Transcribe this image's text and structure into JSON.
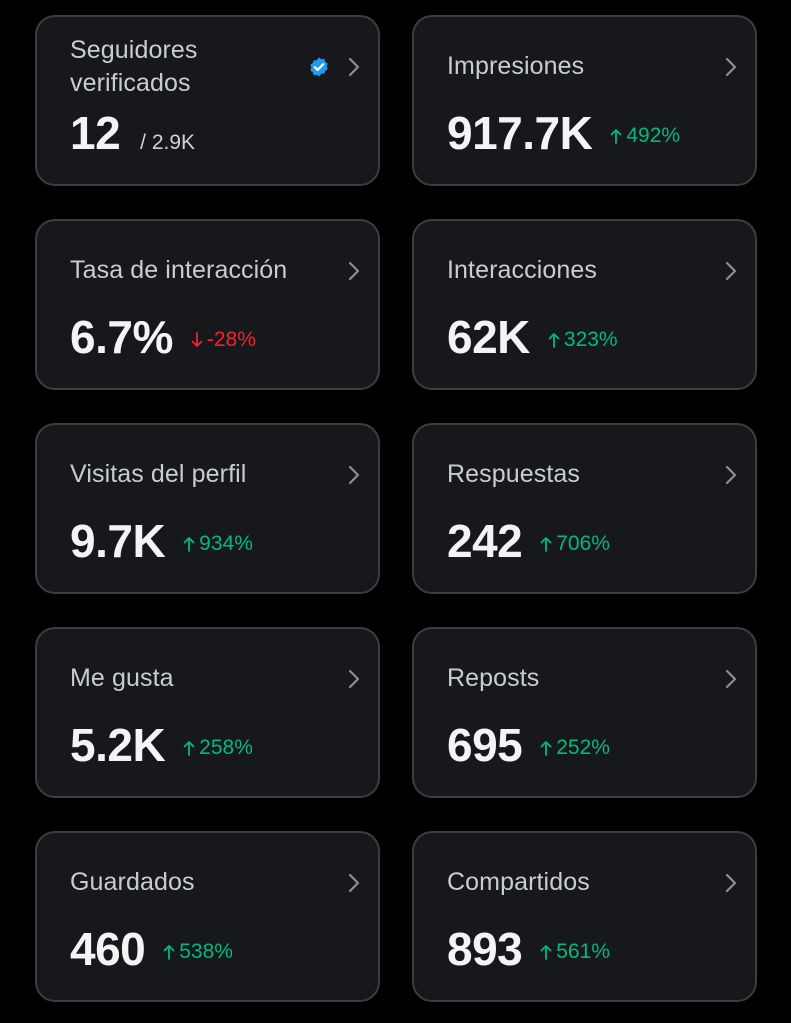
{
  "colors": {
    "background": "#000000",
    "card": "#16181c",
    "card_border": "#3a3d42",
    "positive": "#00ba7c",
    "negative": "#f4212e",
    "verified": "#1d9bf0"
  },
  "cards": [
    {
      "title": "Seguidores verificados",
      "value": "12",
      "sub": "/ 2.9K",
      "icon": "verified-badge-icon"
    },
    {
      "title": "Impresiones",
      "value": "917.7K",
      "delta": "492%",
      "direction": "up"
    },
    {
      "title": "Tasa de interacción",
      "value": "6.7%",
      "delta": "-28%",
      "direction": "down"
    },
    {
      "title": "Interacciones",
      "value": "62K",
      "delta": "323%",
      "direction": "up"
    },
    {
      "title": "Visitas del perfil",
      "value": "9.7K",
      "delta": "934%",
      "direction": "up"
    },
    {
      "title": "Respuestas",
      "value": "242",
      "delta": "706%",
      "direction": "up"
    },
    {
      "title": "Me gusta",
      "value": "5.2K",
      "delta": "258%",
      "direction": "up"
    },
    {
      "title": "Reposts",
      "value": "695",
      "delta": "252%",
      "direction": "up"
    },
    {
      "title": "Guardados",
      "value": "460",
      "delta": "538%",
      "direction": "up"
    },
    {
      "title": "Compartidos",
      "value": "893",
      "delta": "561%",
      "direction": "up"
    }
  ]
}
